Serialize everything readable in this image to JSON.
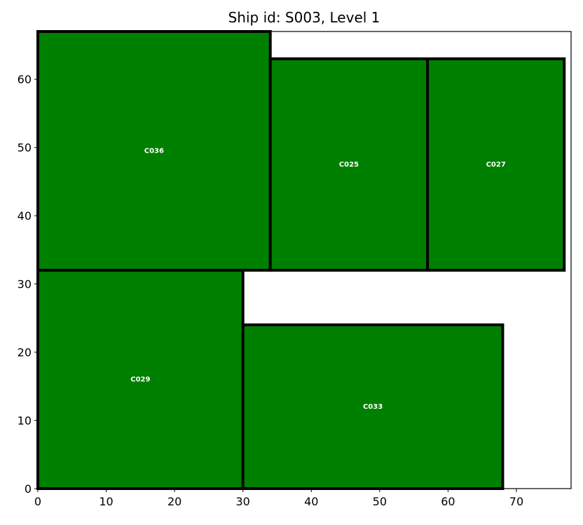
{
  "chart_data": {
    "type": "bar",
    "title": "Ship id: S003, Level 1",
    "xlabel": "",
    "ylabel": "",
    "xlim": [
      0,
      78
    ],
    "ylim": [
      0,
      67
    ],
    "xticks": [
      0,
      10,
      20,
      30,
      40,
      50,
      60,
      70
    ],
    "yticks": [
      0,
      10,
      20,
      30,
      40,
      50,
      60
    ],
    "grid": false,
    "fill_color": "#008000",
    "edge_color": "#000000",
    "label_color": "#ffffff",
    "containers": [
      {
        "id": "C036",
        "x": 0,
        "y": 32,
        "width": 34,
        "height": 35
      },
      {
        "id": "C025",
        "x": 34,
        "y": 32,
        "width": 23,
        "height": 31
      },
      {
        "id": "C027",
        "x": 57,
        "y": 32,
        "width": 20,
        "height": 31
      },
      {
        "id": "C029",
        "x": 0,
        "y": 0,
        "width": 30,
        "height": 32
      },
      {
        "id": "C033",
        "x": 30,
        "y": 0,
        "width": 38,
        "height": 24
      }
    ]
  }
}
